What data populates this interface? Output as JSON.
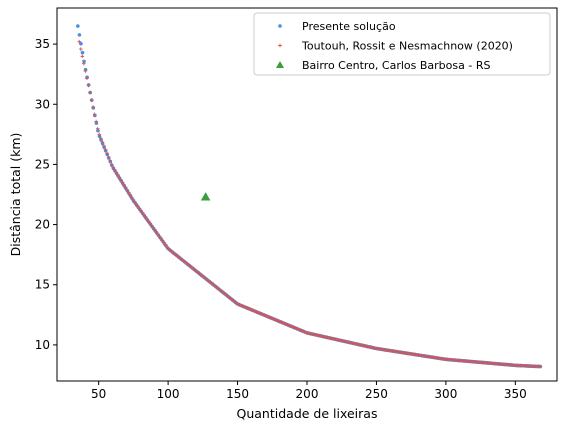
{
  "chart_data": {
    "type": "scatter",
    "xlabel": "Quantidade de lixeiras",
    "ylabel": "Distância total (km)",
    "xlim": [
      20,
      380
    ],
    "ylim": [
      7,
      38
    ],
    "xticks": [
      "50",
      "100",
      "150",
      "200",
      "250",
      "300",
      "350"
    ],
    "yticks": [
      "10",
      "15",
      "20",
      "25",
      "30",
      "35"
    ],
    "grid": false,
    "legend_position": "top-right",
    "series": [
      {
        "name": "Presente solução",
        "marker": "circle",
        "color": "#4a90e2",
        "x_range": [
          35,
          368
        ],
        "point_count": 300,
        "sample_points": [
          [
            35,
            36.5
          ],
          [
            40,
            33.2
          ],
          [
            50,
            27.5
          ],
          [
            60,
            24.8
          ],
          [
            75,
            22.0
          ],
          [
            100,
            18.0
          ],
          [
            150,
            13.4
          ],
          [
            200,
            11.0
          ],
          [
            250,
            9.7
          ],
          [
            300,
            8.8
          ],
          [
            350,
            8.3
          ],
          [
            368,
            8.2
          ]
        ]
      },
      {
        "name": "Toutouh, Rossit e Nesmachnow (2020)",
        "marker": "plus",
        "color": "#d9534f",
        "x_range": [
          36,
          368
        ],
        "point_count": 300,
        "sample_points": [
          [
            36,
            35.2
          ],
          [
            40,
            33.0
          ],
          [
            50,
            27.6
          ],
          [
            60,
            24.8
          ],
          [
            75,
            22.0
          ],
          [
            100,
            18.0
          ],
          [
            150,
            13.4
          ],
          [
            200,
            11.0
          ],
          [
            250,
            9.7
          ],
          [
            300,
            8.8
          ],
          [
            350,
            8.3
          ],
          [
            368,
            8.2
          ]
        ]
      },
      {
        "name": "Bairro Centro, Carlos Barbosa - RS",
        "marker": "triangle",
        "color": "#3a9e3f",
        "points": [
          [
            127,
            22.3
          ]
        ]
      }
    ]
  }
}
